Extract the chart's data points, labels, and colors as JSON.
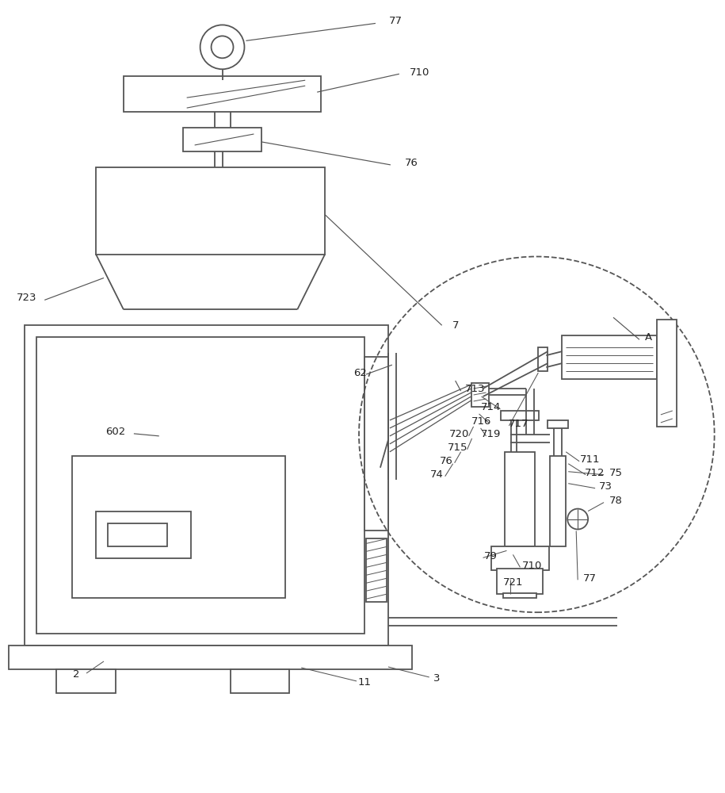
{
  "bg_color": "#ffffff",
  "line_color": "#555555",
  "label_color": "#222222",
  "fig_width": 9.15,
  "fig_height": 10.0,
  "dpi": 100
}
